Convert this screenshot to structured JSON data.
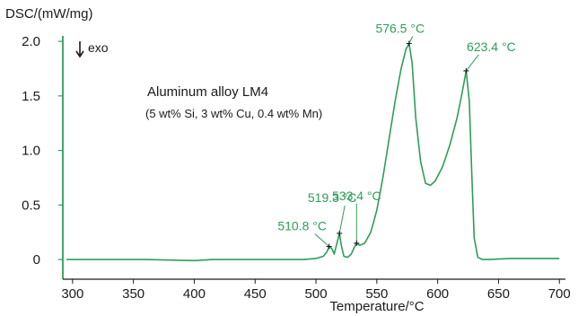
{
  "colors": {
    "curve": "#2e9e58",
    "axis": "#1a1a1a",
    "peak_label": "#2e9e58"
  },
  "chart_data": {
    "type": "line",
    "xlabel": "Temperature/°C",
    "ylabel": "DSC/(mW/mg)",
    "direction_marker": {
      "icon": "down-arrow-icon",
      "text": "exo"
    },
    "annotation": {
      "title": "Aluminum alloy LM4",
      "subtitle": "(5 wt% Si, 3 wt% Cu, 0.4 wt% Mn)"
    },
    "xlim": [
      292,
      705
    ],
    "ylim": [
      -0.18,
      2.05
    ],
    "x_ticks": [
      300,
      350,
      400,
      450,
      500,
      550,
      600,
      650,
      700
    ],
    "x_tick_labels": [
      "300",
      "350",
      "400",
      "450",
      "500",
      "550",
      "600",
      "650",
      "700"
    ],
    "y_ticks": [
      0,
      0.5,
      1.0,
      1.5,
      2.0
    ],
    "y_tick_labels": [
      "0",
      "0.5",
      "1.0",
      "1.5",
      "2.0"
    ],
    "grid": false,
    "series": [
      {
        "x": [
          295,
          330,
          360,
          400,
          415,
          440,
          470,
          490,
          500,
          506,
          509,
          510.8,
          513,
          515,
          517,
          519.3,
          521,
          523,
          526,
          529,
          531,
          533.4,
          536,
          540,
          545,
          550,
          555,
          560,
          565,
          570,
          574,
          576.5,
          579,
          582,
          586,
          590,
          594,
          598,
          604,
          610,
          616,
          620,
          623.4,
          626,
          628,
          630,
          633,
          637,
          642,
          660,
          680,
          700
        ],
        "y": [
          0.0,
          0.0,
          0.0,
          -0.01,
          0.0,
          0.0,
          0.0,
          0.0,
          0.01,
          0.03,
          0.07,
          0.12,
          0.1,
          0.05,
          0.14,
          0.24,
          0.12,
          0.03,
          0.02,
          0.05,
          0.1,
          0.15,
          0.13,
          0.15,
          0.25,
          0.45,
          0.75,
          1.1,
          1.45,
          1.75,
          1.93,
          1.98,
          1.8,
          1.3,
          0.9,
          0.7,
          0.68,
          0.72,
          0.85,
          1.05,
          1.3,
          1.52,
          1.73,
          1.45,
          0.8,
          0.2,
          0.02,
          0.0,
          0.0,
          0.01,
          0.01,
          0.01
        ]
      }
    ],
    "peaks": [
      {
        "label": "510.8 °C",
        "x": 510.8,
        "y": 0.12
      },
      {
        "label": "519.3 °C",
        "x": 519.3,
        "y": 0.24
      },
      {
        "label": "533.4 °C",
        "x": 533.4,
        "y": 0.15
      },
      {
        "label": "576.5 °C",
        "x": 576.5,
        "y": 1.98
      },
      {
        "label": "623.4 °C",
        "x": 623.4,
        "y": 1.73
      }
    ]
  }
}
